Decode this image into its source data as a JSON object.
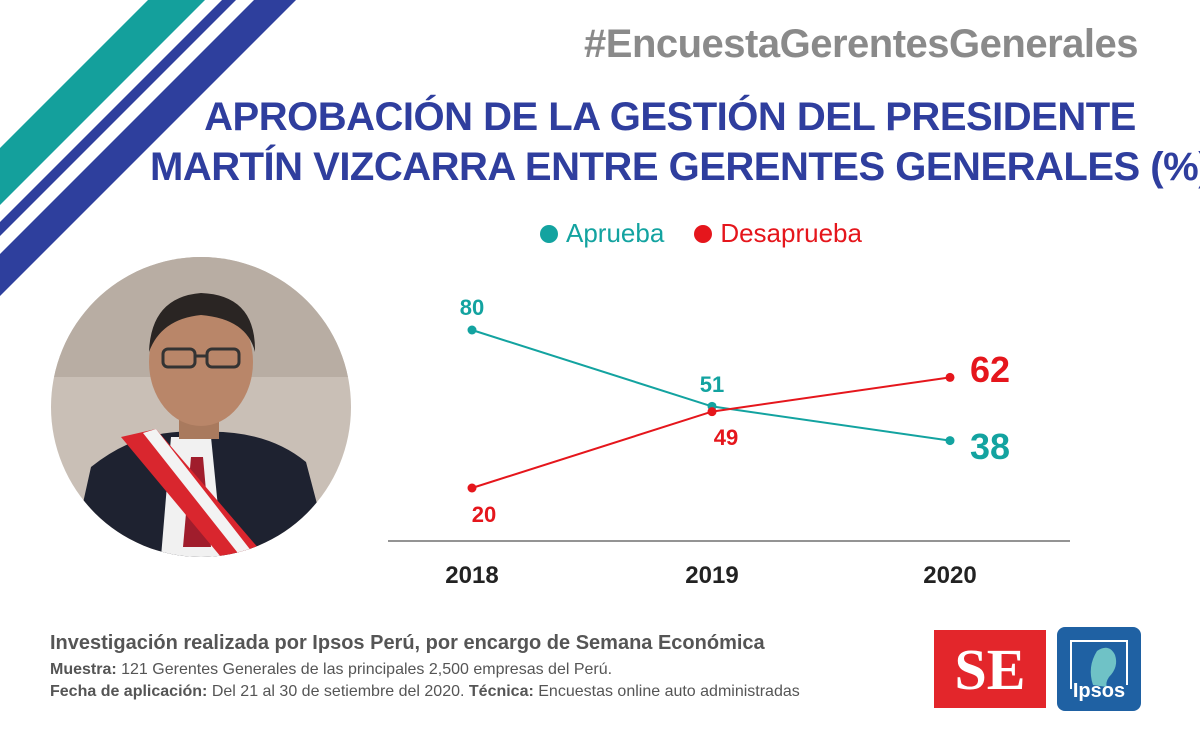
{
  "header": {
    "hashtag": "#EncuestaGerentesGenerales",
    "title_line1": "APROBACIÓN DE LA GESTIÓN DEL PRESIDENTE",
    "title_line2": "MARTÍN VIZCARRA ENTRE GERENTES GENERALES (%)"
  },
  "colors": {
    "teal": "#13a3a0",
    "red": "#e5161c",
    "navy": "#2f3e9e",
    "stripe_teal": "#14a09c",
    "stripe_navy": "#2e3f9d"
  },
  "chart_data": {
    "type": "line",
    "categories": [
      "2018",
      "2019",
      "2020"
    ],
    "series": [
      {
        "name": "Aprueba",
        "color": "#13a3a0",
        "values": [
          80,
          51,
          38
        ]
      },
      {
        "name": "Desaprueba",
        "color": "#e5161c",
        "values": [
          20,
          49,
          62
        ]
      }
    ],
    "data_labels": {
      "Aprueba": [
        "80",
        "51",
        "38"
      ],
      "Desaprueba": [
        "20",
        "49",
        "62"
      ]
    },
    "ylim": [
      15,
      85
    ],
    "legend": "top-center",
    "grid": false
  },
  "footer": {
    "line1": "Investigación realizada por Ipsos Perú, por encargo de Semana Económica",
    "muestra_label": "Muestra:",
    "muestra_text": " 121 Gerentes Generales de las principales 2,500 empresas del Perú.",
    "fecha_label": "Fecha de aplicación:",
    "fecha_text": " Del 21 al 30 de setiembre del 2020. ",
    "tecnica_label": "Técnica:",
    "tecnica_text": " Encuestas online auto administradas"
  },
  "logos": {
    "se": "SE",
    "ipsos": "Ipsos"
  }
}
